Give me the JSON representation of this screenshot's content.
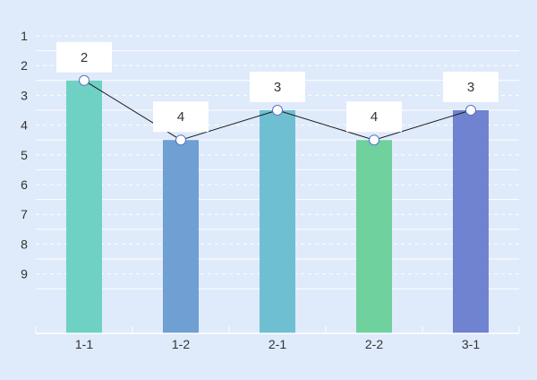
{
  "chart_data": {
    "type": "bar",
    "categories": [
      "1-1",
      "1-2",
      "2-1",
      "2-2",
      "3-1"
    ],
    "values": [
      2,
      4,
      3,
      4,
      3
    ],
    "bar_colors": [
      "#6fd1c4",
      "#6f9fd3",
      "#6fbfd2",
      "#6fd19e",
      "#6f83d0"
    ],
    "line_overlay": {
      "values": [
        2,
        4,
        3,
        4,
        3
      ],
      "color": "#1a1a1a",
      "marker_fill": "#ffffff",
      "marker_stroke": "#5a72c9"
    },
    "data_labels": [
      "2",
      "4",
      "3",
      "4",
      "3"
    ],
    "y_ticks": [
      1,
      2,
      3,
      4,
      5,
      6,
      7,
      8,
      9
    ],
    "y_axis_inverted": true,
    "ylim": [
      0.5,
      10.5
    ],
    "grid": true,
    "title": "",
    "xlabel": "",
    "ylabel": ""
  },
  "colors": {
    "background": "#dfeafb",
    "grid_solid": "#ffffff",
    "axis": "#ffffff",
    "text": "#333333"
  }
}
